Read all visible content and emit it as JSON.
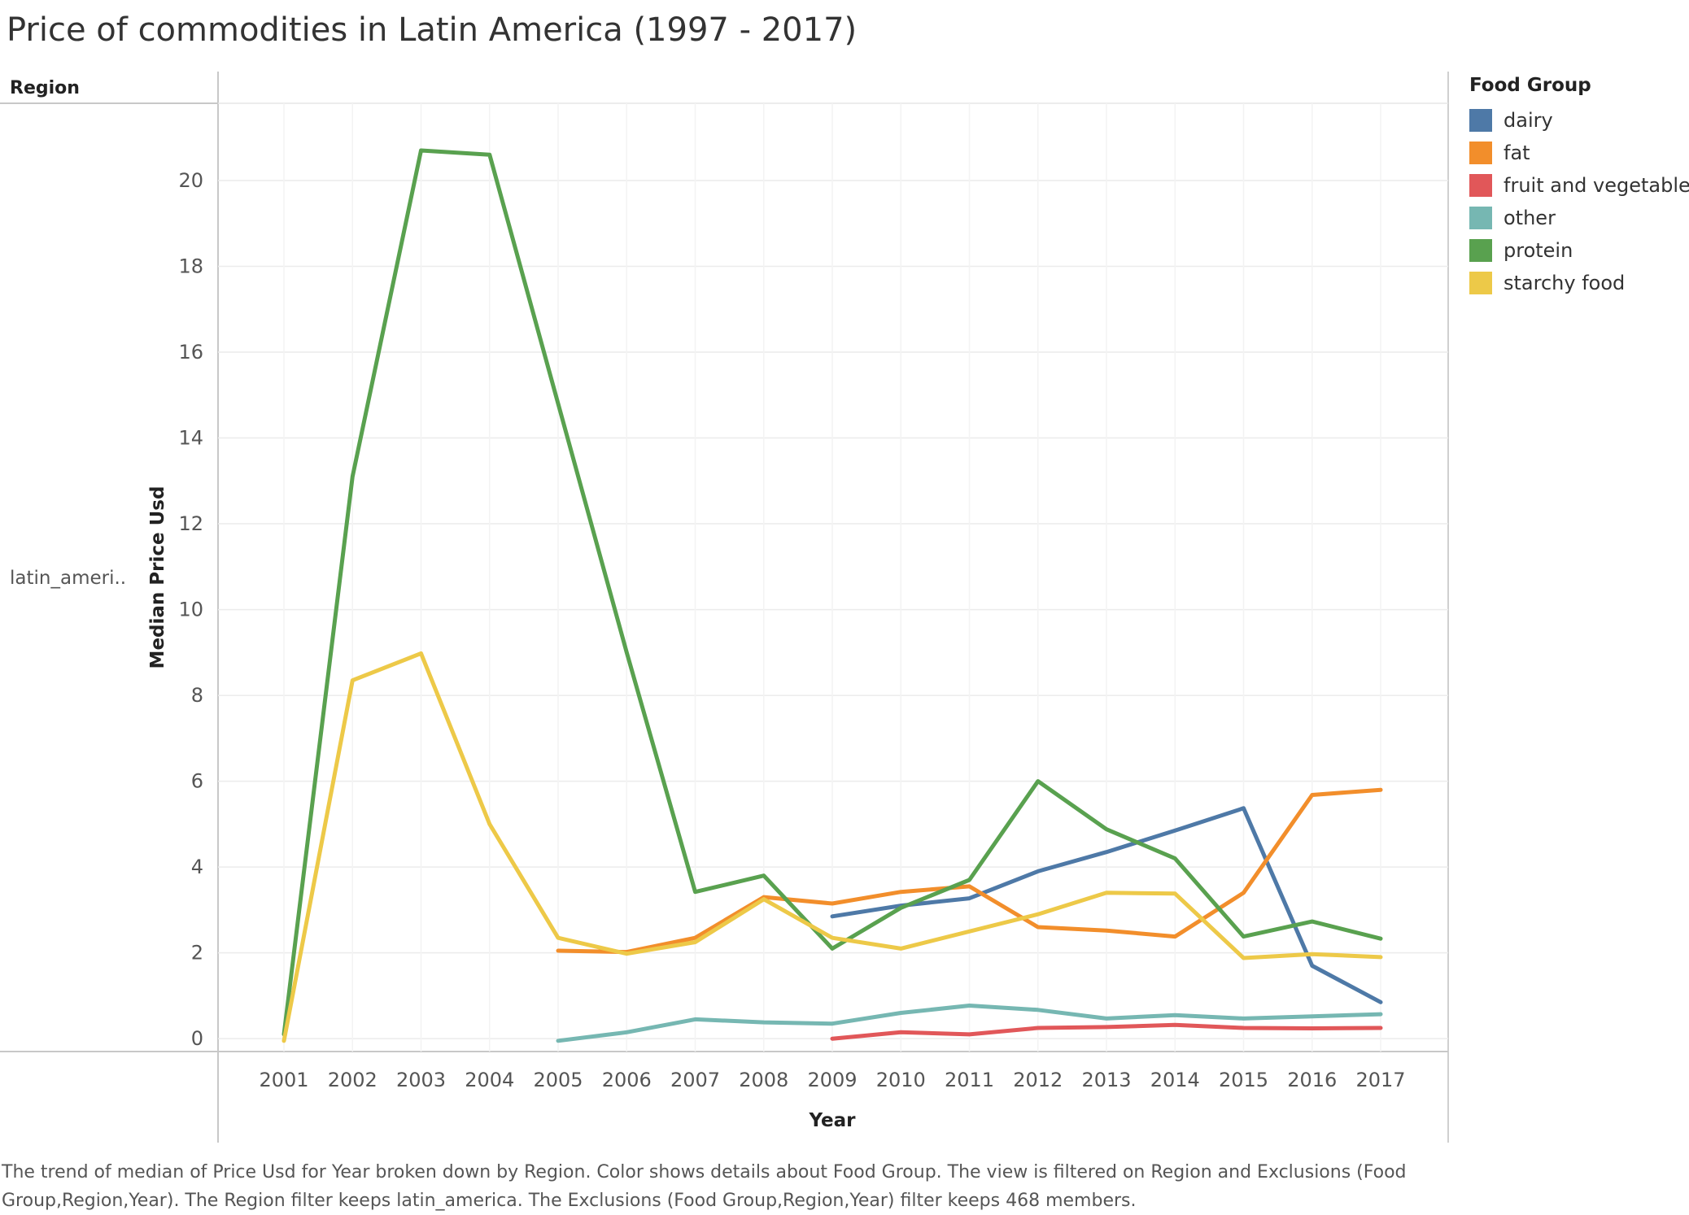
{
  "title": "Price of commodities in Latin America (1997 - 2017)",
  "region_header": "Region",
  "row_label": "latin_ameri..",
  "legend": {
    "title": "Food Group",
    "items": [
      {
        "label": "dairy",
        "color": "#4e79a7"
      },
      {
        "label": "fat",
        "color": "#f28e2b"
      },
      {
        "label": "fruit and vegetables",
        "color": "#e15759"
      },
      {
        "label": "other",
        "color": "#76b7b2"
      },
      {
        "label": "protein",
        "color": "#59a14f"
      },
      {
        "label": "starchy food",
        "color": "#edc948"
      }
    ]
  },
  "caption": "The trend of median of Price Usd for Year broken down by Region.  Color shows details about Food Group. The view is filtered on Region and Exclusions (Food Group,Region,Year). The Region filter keeps latin_america. The Exclusions (Food Group,Region,Year) filter keeps 468 members.",
  "chart_data": {
    "type": "line",
    "title": "Price of commodities in Latin America (1997 - 2017)",
    "xlabel": "Year",
    "ylabel": "Median Price Usd",
    "categories": [
      "2001",
      "2002",
      "2003",
      "2004",
      "2005",
      "2006",
      "2007",
      "2008",
      "2009",
      "2010",
      "2011",
      "2012",
      "2013",
      "2014",
      "2015",
      "2016",
      "2017"
    ],
    "y_ticks": [
      0,
      2,
      4,
      6,
      8,
      10,
      12,
      14,
      16,
      18,
      20
    ],
    "ylim": [
      -0.3,
      21.8
    ],
    "grid": true,
    "legend_position": "right",
    "series": [
      {
        "name": "dairy",
        "color": "#4e79a7",
        "values": [
          null,
          null,
          null,
          null,
          null,
          null,
          null,
          null,
          2.85,
          3.1,
          3.27,
          3.9,
          4.35,
          4.85,
          5.37,
          1.7,
          0.85
        ]
      },
      {
        "name": "fat",
        "color": "#f28e2b",
        "values": [
          null,
          null,
          null,
          null,
          2.05,
          2.02,
          2.35,
          3.3,
          3.15,
          3.42,
          3.55,
          2.6,
          2.52,
          2.38,
          3.4,
          5.68,
          5.8
        ]
      },
      {
        "name": "fruit and vegetables",
        "color": "#e15759",
        "values": [
          null,
          null,
          null,
          null,
          null,
          null,
          null,
          null,
          0.0,
          0.15,
          0.1,
          0.25,
          0.27,
          0.32,
          0.25,
          0.24,
          0.25
        ]
      },
      {
        "name": "other",
        "color": "#76b7b2",
        "values": [
          null,
          null,
          null,
          null,
          -0.05,
          0.15,
          0.45,
          0.38,
          0.35,
          0.6,
          0.77,
          0.67,
          0.47,
          0.55,
          0.47,
          0.52,
          0.57
        ]
      },
      {
        "name": "protein",
        "color": "#59a14f",
        "values": [
          0.1,
          13.1,
          20.7,
          20.6,
          14.8,
          9.0,
          3.42,
          3.8,
          2.1,
          3.05,
          3.7,
          6.0,
          4.88,
          4.2,
          2.38,
          2.73,
          2.33
        ]
      },
      {
        "name": "starchy food",
        "color": "#edc948",
        "values": [
          -0.05,
          8.35,
          8.98,
          5.0,
          2.35,
          1.98,
          2.25,
          3.25,
          2.35,
          2.1,
          2.5,
          2.9,
          3.4,
          3.38,
          1.88,
          1.97,
          1.9
        ]
      }
    ]
  }
}
